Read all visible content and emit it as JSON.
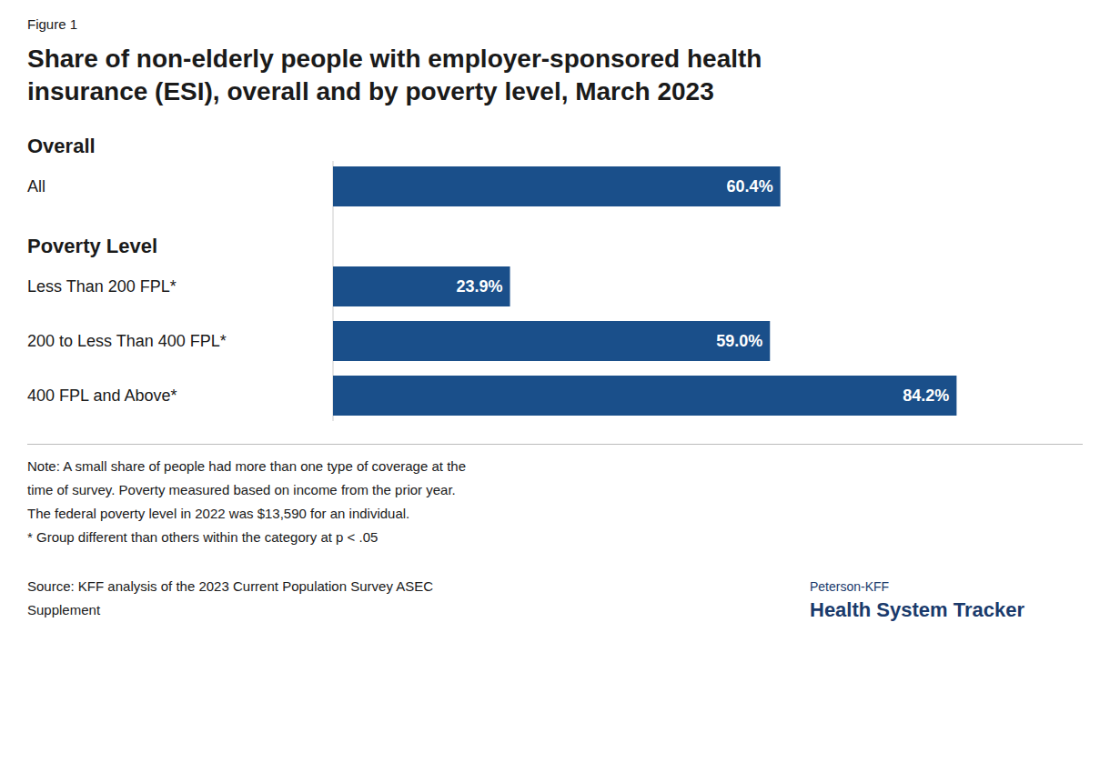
{
  "chart_data": {
    "type": "bar",
    "orientation": "horizontal",
    "title": "Share of non-elderly people with employer-sponsored health\ninsurance (ESI), overall and by poverty level, March 2023",
    "annotations": [
      "Figure 1",
      "Overall",
      "Poverty Level",
      "Note: A small share of people had more than one type of coverage at the\ntime of survey. Poverty measured based on income from the prior year.\nThe federal poverty level in 2022 was $13,590 for an individual.\n* Group different than others within the category at p < .05",
      "Source: KFF analysis of the 2023 Current Population Survey ASEC\nSupplement",
      "Peterson-KFF",
      "Health System Tracker"
    ],
    "categories": [
      "All",
      "Less Than 200 FPL*",
      "200 to Less Than 400 FPL*",
      "400 FPL and Above*"
    ],
    "values": [
      60.4,
      23.9,
      59.0,
      84.2
    ],
    "value_labels": [
      "60.4%",
      "23.9%",
      "59.0%",
      "84.2%"
    ],
    "data_labels": true,
    "color": "#1a4f8a",
    "xlim": [
      0,
      100
    ],
    "tick_labels": false,
    "grid": false
  }
}
